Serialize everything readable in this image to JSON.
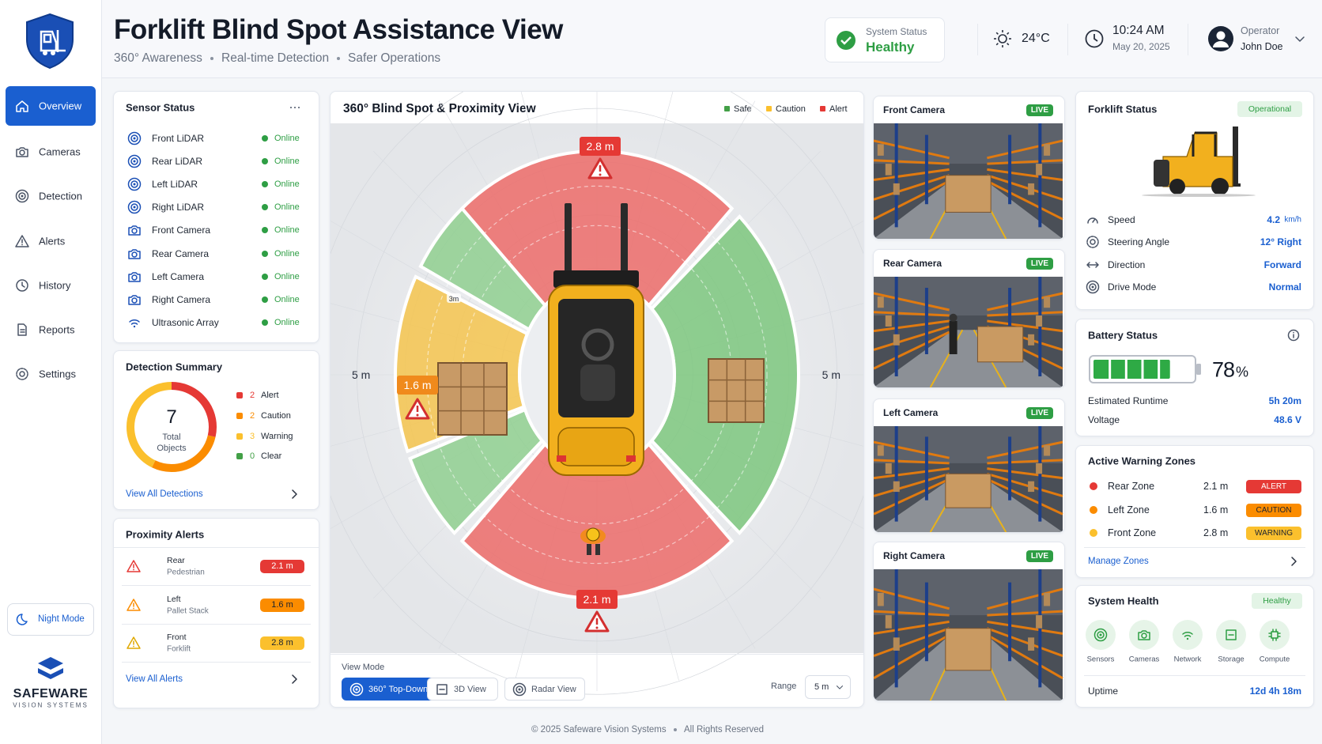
{
  "header": {
    "title": "Forklift Blind Spot Assistance View",
    "tagline": [
      "360° Awareness",
      "Real-time Detection",
      "Safer Operations"
    ],
    "system_status": {
      "label": "System Status",
      "value": "Healthy"
    },
    "temperature": "24°C",
    "time": "10:24 AM",
    "date": "May 20, 2025",
    "operator": {
      "label": "Operator",
      "name": "John Doe"
    }
  },
  "sidebar": {
    "nav": [
      "Overview",
      "Cameras",
      "Detection",
      "Alerts",
      "History",
      "Reports",
      "Settings"
    ],
    "night_mode": "Night Mode",
    "brand": "SAFEWARE",
    "brand_subtitle": "VISION SYSTEMS"
  },
  "sensor_status": {
    "title": "Sensor Status",
    "sensors": [
      {
        "name": "Front LiDAR",
        "status": "Online"
      },
      {
        "name": "Rear LiDAR",
        "status": "Online"
      },
      {
        "name": "Left LiDAR",
        "status": "Online"
      },
      {
        "name": "Right LiDAR",
        "status": "Online"
      },
      {
        "name": "Front Camera",
        "status": "Online"
      },
      {
        "name": "Rear Camera",
        "status": "Online"
      },
      {
        "name": "Left Camera",
        "status": "Online"
      },
      {
        "name": "Right Camera",
        "status": "Online"
      },
      {
        "name": "Ultrasonic Array",
        "status": "Online"
      }
    ]
  },
  "detection_summary": {
    "title": "Detection Summary",
    "total": 7,
    "total_label": "Total Objects",
    "items": [
      {
        "count": 2,
        "label": "Alert",
        "color": "#e53935"
      },
      {
        "count": 2,
        "label": "Caution",
        "color": "#fb8c00"
      },
      {
        "count": 3,
        "label": "Warning",
        "color": "#fbc02d"
      },
      {
        "count": 0,
        "label": "Clear",
        "color": "#43a047"
      }
    ],
    "link": "View All Detections"
  },
  "proximity_alerts": {
    "title": "Proximity Alerts",
    "alerts": [
      {
        "zone": "Rear",
        "object": "Pedestrian",
        "distance": "2.1 m",
        "color": "#e53935"
      },
      {
        "zone": "Left",
        "object": "Pallet Stack",
        "distance": "1.6 m",
        "color": "#fb8c00"
      },
      {
        "zone": "Front",
        "object": "Forklift",
        "distance": "2.8 m",
        "color": "#fbc02d"
      }
    ],
    "link": "View All Alerts"
  },
  "proximity_view": {
    "title": "360° Blind Spot & Proximity View",
    "legend": [
      {
        "label": "Safe",
        "color": "#43a047"
      },
      {
        "label": "Caution",
        "color": "#fbc02d"
      },
      {
        "label": "Alert",
        "color": "#e53935"
      }
    ],
    "front_distance": "2.8 m",
    "left_distance": "1.6 m",
    "rear_distance": "2.1 m",
    "left_range": "5 m",
    "right_range": "5 m",
    "ring_label": "3m",
    "view_mode_label": "View Mode",
    "view_modes": [
      "360° Top-Down",
      "3D View",
      "Radar View"
    ],
    "range_label": "Range",
    "range": "5 m"
  },
  "cameras": [
    {
      "name": "Front Camera",
      "status": "LIVE"
    },
    {
      "name": "Rear Camera",
      "status": "LIVE"
    },
    {
      "name": "Left Camera",
      "status": "LIVE"
    },
    {
      "name": "Right Camera",
      "status": "LIVE"
    }
  ],
  "forklift_status": {
    "title": "Forklift Status",
    "state": "Operational",
    "metrics": [
      {
        "label": "Speed",
        "value": "4.2",
        "unit": "km/h"
      },
      {
        "label": "Steering Angle",
        "value": "12° Right"
      },
      {
        "label": "Direction",
        "value": "Forward"
      },
      {
        "label": "Drive Mode",
        "value": "Normal"
      }
    ]
  },
  "battery": {
    "title": "Battery Status",
    "level": 78,
    "unit": "%",
    "runtime_label": "Estimated Runtime",
    "runtime": "5h 20m",
    "voltage_label": "Voltage",
    "voltage": "48.6 V"
  },
  "warning_zones": {
    "title": "Active Warning Zones",
    "zones": [
      {
        "name": "Rear Zone",
        "distance": "2.1 m",
        "level": "ALERT",
        "color": "#e53935"
      },
      {
        "name": "Left Zone",
        "distance": "1.6 m",
        "level": "CAUTION",
        "color": "#fb8c00"
      },
      {
        "name": "Front Zone",
        "distance": "2.8 m",
        "level": "WARNING",
        "color": "#fbc02d"
      }
    ],
    "link": "Manage Zones"
  },
  "system_health": {
    "title": "System Health",
    "state": "Healthy",
    "components": [
      "Sensors",
      "Cameras",
      "Network",
      "Storage",
      "Compute"
    ],
    "uptime_label": "Uptime",
    "uptime": "12d 4h 18m"
  },
  "footer": {
    "copyright": "© 2025 Safeware Vision Systems",
    "rights": "All Rights Reserved"
  }
}
